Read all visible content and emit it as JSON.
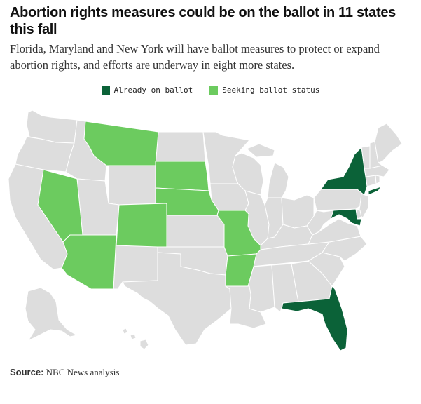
{
  "title": "Abortion rights measures could be on the ballot in 11 states this fall",
  "subtitle": "Florida, Maryland and New York will have ballot measures to protect or expand abortion rights, and efforts are underway in eight more states.",
  "legend": {
    "already": {
      "label": "Already on ballot",
      "color": "#0b6238"
    },
    "seeking": {
      "label": "Seeking ballot status",
      "color": "#6ccb5f"
    }
  },
  "map": {
    "base_color": "#dddddd",
    "border_color": "#ffffff",
    "already_on_ballot": [
      "New York",
      "Maryland",
      "Florida"
    ],
    "seeking_ballot_status": [
      "Montana",
      "South Dakota",
      "Nebraska",
      "Nevada",
      "Colorado",
      "Arizona",
      "Missouri",
      "Arkansas"
    ]
  },
  "source": {
    "label": "Source:",
    "text": "NBC News analysis"
  }
}
